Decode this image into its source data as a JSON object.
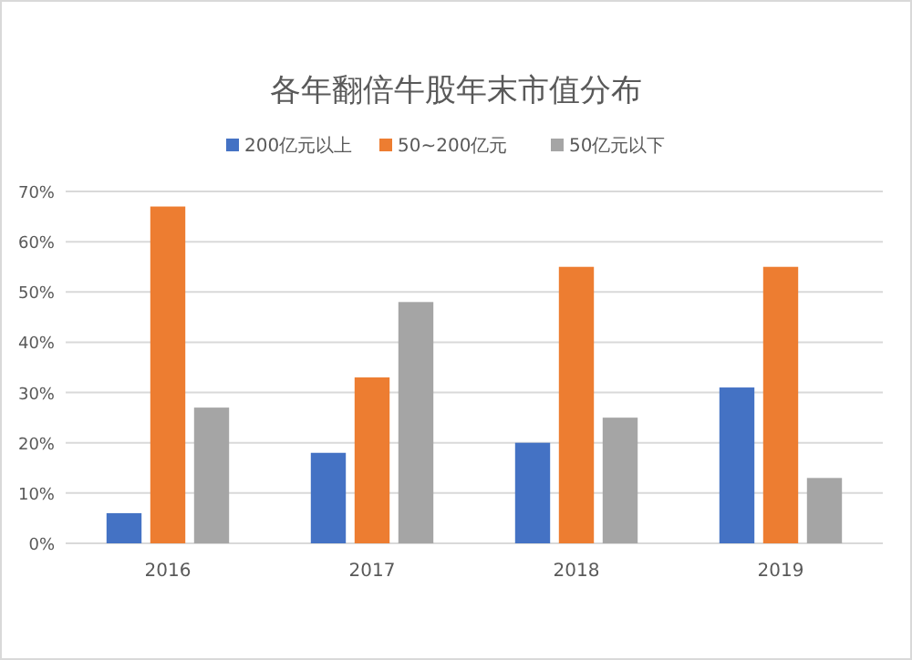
{
  "chart_data": {
    "type": "bar",
    "title": "各年翻倍牛股年末市值分布",
    "categories": [
      "2016",
      "2017",
      "2018",
      "2019"
    ],
    "series": [
      {
        "name": "200亿元以上",
        "color": "#4472c4",
        "values": [
          6,
          18,
          20,
          31
        ]
      },
      {
        "name": "50~200亿元",
        "color": "#ed7d31",
        "values": [
          67,
          33,
          55,
          55
        ]
      },
      {
        "name": "50亿元以下",
        "color": "#a5a5a5",
        "values": [
          27,
          48,
          25,
          13
        ]
      }
    ],
    "ylim": [
      0,
      70
    ],
    "yticks": [
      {
        "value": 0,
        "label": "0%"
      },
      {
        "value": 10,
        "label": "10%"
      },
      {
        "value": 20,
        "label": "20%"
      },
      {
        "value": 30,
        "label": "30%"
      },
      {
        "value": 40,
        "label": "40%"
      },
      {
        "value": 50,
        "label": "50%"
      },
      {
        "value": 60,
        "label": "60%"
      },
      {
        "value": 70,
        "label": "70%"
      }
    ],
    "grid": "y",
    "legend": "top"
  }
}
